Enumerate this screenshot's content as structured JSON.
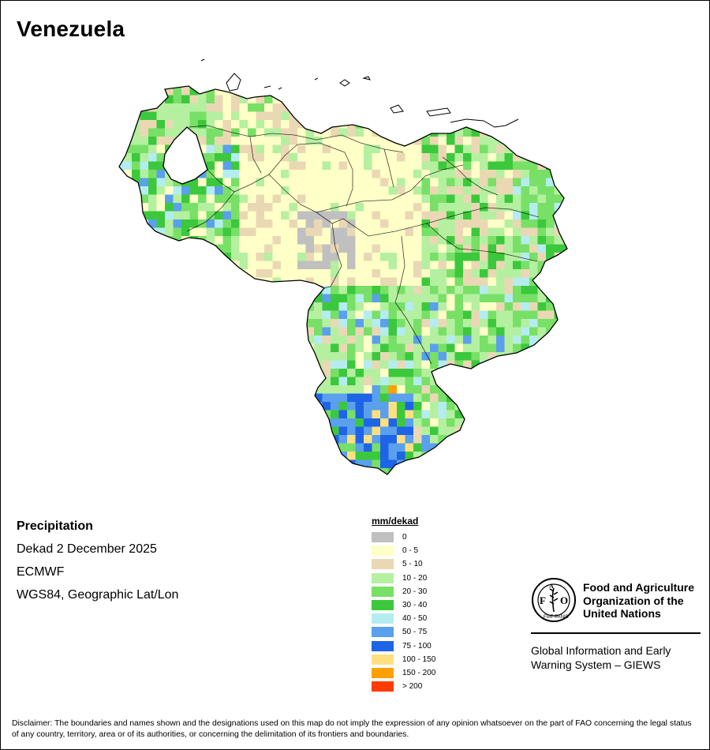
{
  "map": {
    "title": "Venezuela",
    "variable": "Precipitation",
    "period": "Dekad 2 December 2025",
    "source": "ECMWF",
    "projection": "WGS84, Geographic Lat/Lon"
  },
  "legend": {
    "title": "mm/dekad",
    "classes": [
      {
        "label": "0",
        "color": "#c0c0c0"
      },
      {
        "label": "0 - 5",
        "color": "#ffffc8"
      },
      {
        "label": "5 - 10",
        "color": "#ead8b4"
      },
      {
        "label": "10 - 20",
        "color": "#b4f0a0"
      },
      {
        "label": "20 - 30",
        "color": "#78e066"
      },
      {
        "label": "30 - 40",
        "color": "#3cc83c"
      },
      {
        "label": "40 - 50",
        "color": "#b4ecf0"
      },
      {
        "label": "50 - 75",
        "color": "#5aa0ec"
      },
      {
        "label": "75 - 100",
        "color": "#1e64e6"
      },
      {
        "label": "100 - 150",
        "color": "#ffe080"
      },
      {
        "label": "150 - 200",
        "color": "#ffa000"
      },
      {
        "label": "> 200",
        "color": "#ff3c00"
      }
    ]
  },
  "organization": {
    "logo_text": "FAO",
    "logo_motto": "FIAT PANIS",
    "name": "Food and Agriculture Organization of the United Nations",
    "program": "Global Information and Early Warning System – GIEWS"
  },
  "disclaimer": "Disclaimer: The boundaries and names shown and the designations used on this map do not imply the expression of any opinion whatsoever on the part of FAO concerning the legal status of any country, territory, area or of its authorities, or concerning the delimitation of its frontiers and boundaries."
}
